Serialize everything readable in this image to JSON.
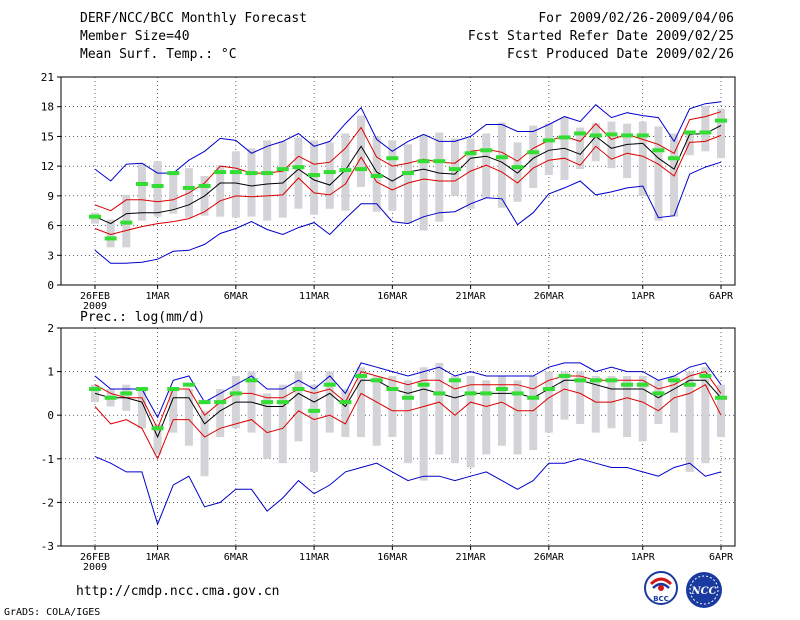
{
  "header": {
    "title": "DERF/NCC/BCC Monthly Forecast",
    "member_size": "Member Size=40",
    "variable": "Mean Surf. Temp.: °C",
    "forecast_period": "For 2009/02/26-2009/04/06",
    "started_refer_date": "Fcst Started Refer Date 2009/02/25",
    "produced_date": "Fcst Produced Date 2009/02/26"
  },
  "footer": {
    "url": "http://cmdp.ncc.cma.gov.cn",
    "credit": "GrADS: COLA/IGES",
    "logo_left_text": "BCC",
    "logo_right_text": "NCC"
  },
  "colors": {
    "envelope": "#0000cc",
    "spread": "#dd0000",
    "mean": "#000000",
    "box": "#d4d4d8",
    "marker": "#33dd33"
  },
  "chart_data": [
    {
      "type": "line",
      "title": "Mean Surf. Temp.: °C",
      "ylim": [
        0,
        21
      ],
      "yticks": [
        0,
        3,
        6,
        9,
        12,
        15,
        18,
        21
      ],
      "xlim": [
        0,
        40
      ],
      "xtick_positions": [
        0,
        4,
        9,
        14,
        19,
        24,
        29,
        35,
        40
      ],
      "xtick_labels": [
        "26FEB",
        "1MAR",
        "6MAR",
        "11MAR",
        "16MAR",
        "21MAR",
        "26MAR",
        "1APR",
        "6APR"
      ],
      "xtick_sublabel": "2009",
      "series": [
        {
          "name": "max",
          "color": "#0000cc",
          "values": [
            11.7,
            10.5,
            12.2,
            12.3,
            11.3,
            11.3,
            12.6,
            13.5,
            14.8,
            14.6,
            13.3,
            14.0,
            14.5,
            15.3,
            14.0,
            14.5,
            16.3,
            17.9,
            14.7,
            13.5,
            14.5,
            15.2,
            14.5,
            14.5,
            15.0,
            16.2,
            16.2,
            15.5,
            15.5,
            16.2,
            17.0,
            16.5,
            18.2,
            16.9,
            17.4,
            17.1,
            16.9,
            14.5,
            17.8,
            18.3,
            18.5
          ]
        },
        {
          "name": "upper",
          "color": "#dd0000",
          "values": [
            8.1,
            7.5,
            8.6,
            8.6,
            8.4,
            8.6,
            9.3,
            10.3,
            12.0,
            11.8,
            11.3,
            11.3,
            11.5,
            13.0,
            12.2,
            12.4,
            13.8,
            15.9,
            12.9,
            12.0,
            12.3,
            12.7,
            12.4,
            12.3,
            13.5,
            13.7,
            13.4,
            12.5,
            13.8,
            14.6,
            15.0,
            14.5,
            16.3,
            14.7,
            15.2,
            14.7,
            14.2,
            13.3,
            16.7,
            17.0,
            17.5
          ]
        },
        {
          "name": "mean",
          "color": "#000000",
          "values": [
            6.9,
            6.2,
            7.2,
            7.3,
            7.3,
            7.6,
            8.1,
            9.0,
            10.3,
            10.3,
            10.0,
            10.2,
            10.3,
            11.7,
            10.6,
            10.1,
            11.6,
            14.0,
            11.4,
            10.5,
            11.4,
            11.7,
            11.3,
            11.2,
            12.8,
            13.0,
            12.4,
            11.3,
            12.8,
            13.6,
            13.8,
            13.2,
            15.0,
            13.8,
            14.2,
            14.3,
            12.8,
            11.7,
            15.2,
            15.3,
            16.1
          ]
        },
        {
          "name": "lower",
          "color": "#dd0000",
          "values": [
            5.7,
            5.1,
            5.5,
            5.9,
            6.2,
            6.4,
            6.7,
            7.4,
            8.5,
            9.0,
            8.9,
            9.0,
            9.1,
            10.8,
            9.3,
            9.1,
            10.2,
            12.9,
            10.4,
            9.6,
            10.3,
            10.7,
            10.5,
            10.5,
            11.5,
            12.1,
            11.4,
            10.3,
            11.8,
            12.6,
            12.8,
            12.1,
            14.0,
            12.7,
            13.3,
            13.0,
            12.2,
            11.0,
            14.4,
            14.5,
            15.1
          ]
        },
        {
          "name": "min",
          "color": "#0000cc",
          "values": [
            3.5,
            2.2,
            2.2,
            2.3,
            2.6,
            3.4,
            3.5,
            4.1,
            5.2,
            5.7,
            6.4,
            5.6,
            5.1,
            5.8,
            6.3,
            5.1,
            6.7,
            8.2,
            8.2,
            6.4,
            6.2,
            6.9,
            7.3,
            7.4,
            8.2,
            8.8,
            8.7,
            6.1,
            7.3,
            9.2,
            9.8,
            10.5,
            9.1,
            9.4,
            9.8,
            10.0,
            6.8,
            7.0,
            11.2,
            11.9,
            12.4
          ]
        }
      ],
      "boxes": {
        "low": [
          6.2,
          3.8,
          3.8,
          6.5,
          6.9,
          7.2,
          6.8,
          7.0,
          6.9,
          6.8,
          6.9,
          6.5,
          6.8,
          7.7,
          7.1,
          7.7,
          7.5,
          9.9,
          7.4,
          7.5,
          6.2,
          5.5,
          6.4,
          9.0,
          7.7,
          8.8,
          7.8,
          8.4,
          9.8,
          11.1,
          10.6,
          11.7,
          12.5,
          11.8,
          10.8,
          9.0,
          6.5,
          6.9,
          13.1,
          13.5,
          12.8
        ],
        "high": [
          7.3,
          6.6,
          9.1,
          12.3,
          12.5,
          11.5,
          11.8,
          11.0,
          12.1,
          13.5,
          13.8,
          14.6,
          14.5,
          14.9,
          14.6,
          14.4,
          15.3,
          17.1,
          15.0,
          14.6,
          14.2,
          15.2,
          15.4,
          14.8,
          14.8,
          15.3,
          16.4,
          14.4,
          16.1,
          16.3,
          16.9,
          15.9,
          16.3,
          16.5,
          16.3,
          16.5,
          16.0,
          15.3,
          15.4,
          18.1,
          17.8
        ]
      },
      "markers": [
        6.9,
        4.7,
        6.3,
        10.2,
        10.0,
        11.3,
        9.8,
        10.0,
        11.4,
        11.4,
        11.3,
        11.3,
        11.7,
        11.9,
        11.1,
        11.4,
        11.6,
        11.7,
        11.0,
        12.8,
        11.3,
        12.5,
        12.5,
        11.7,
        13.3,
        13.6,
        12.9,
        11.9,
        13.4,
        14.6,
        14.9,
        15.3,
        15.1,
        15.2,
        15.1,
        15.1,
        13.6,
        12.8,
        15.4,
        15.4,
        16.6
      ]
    },
    {
      "type": "line",
      "title": "Prec.: log(mm/d)",
      "ylim": [
        -3,
        2
      ],
      "yticks": [
        -3,
        -2,
        -1,
        0,
        1,
        2
      ],
      "xlim": [
        0,
        40
      ],
      "xtick_positions": [
        0,
        4,
        9,
        14,
        19,
        24,
        29,
        35,
        40
      ],
      "xtick_labels": [
        "26FEB",
        "1MAR",
        "6MAR",
        "11MAR",
        "16MAR",
        "21MAR",
        "26MAR",
        "1APR",
        "6APR"
      ],
      "xtick_sublabel": "2009",
      "series": [
        {
          "name": "max",
          "color": "#0000cc",
          "values": [
            0.9,
            0.6,
            0.6,
            0.6,
            -0.05,
            0.8,
            0.9,
            0.3,
            0.5,
            0.7,
            0.9,
            0.6,
            0.6,
            0.8,
            0.6,
            0.9,
            0.5,
            1.2,
            1.1,
            1.0,
            0.9,
            1.0,
            1.1,
            0.9,
            1.0,
            0.9,
            0.9,
            0.9,
            0.9,
            1.1,
            1.2,
            1.2,
            1.0,
            1.1,
            1.0,
            1.0,
            0.8,
            0.9,
            1.1,
            1.2,
            0.7
          ]
        },
        {
          "name": "upper",
          "color": "#dd0000",
          "values": [
            0.7,
            0.5,
            0.4,
            0.4,
            -0.3,
            0.6,
            0.6,
            0.0,
            0.3,
            0.5,
            0.5,
            0.4,
            0.4,
            0.6,
            0.5,
            0.6,
            0.3,
            1.0,
            0.9,
            0.8,
            0.7,
            0.8,
            0.8,
            0.6,
            0.7,
            0.7,
            0.7,
            0.7,
            0.6,
            0.8,
            0.9,
            0.9,
            0.8,
            0.8,
            0.8,
            0.8,
            0.6,
            0.7,
            0.9,
            1.0,
            0.5
          ]
        },
        {
          "name": "mean",
          "color": "#000000",
          "values": [
            0.5,
            0.4,
            0.4,
            0.3,
            -0.5,
            0.4,
            0.4,
            -0.2,
            0.1,
            0.3,
            0.3,
            0.2,
            0.2,
            0.5,
            0.3,
            0.5,
            0.2,
            0.8,
            0.8,
            0.6,
            0.5,
            0.6,
            0.5,
            0.4,
            0.5,
            0.5,
            0.5,
            0.5,
            0.4,
            0.6,
            0.8,
            0.8,
            0.7,
            0.6,
            0.6,
            0.6,
            0.4,
            0.6,
            0.8,
            0.8,
            0.4
          ]
        },
        {
          "name": "lower",
          "color": "#dd0000",
          "values": [
            0.2,
            -0.2,
            -0.1,
            -0.3,
            -1.0,
            -0.1,
            -0.1,
            -0.5,
            -0.3,
            -0.2,
            -0.1,
            -0.4,
            -0.3,
            0.1,
            -0.1,
            0.0,
            -0.2,
            0.5,
            0.3,
            0.1,
            0.1,
            0.2,
            0.3,
            0.0,
            0.3,
            0.2,
            0.3,
            0.1,
            0.1,
            0.4,
            0.6,
            0.5,
            0.3,
            0.3,
            0.4,
            0.3,
            0.1,
            0.4,
            0.5,
            0.7,
            0.0
          ]
        },
        {
          "name": "min",
          "color": "#0000cc",
          "values": [
            -0.95,
            -1.1,
            -1.3,
            -1.3,
            -2.5,
            -1.6,
            -1.4,
            -2.1,
            -2.0,
            -1.7,
            -1.7,
            -2.2,
            -1.9,
            -1.5,
            -1.8,
            -1.6,
            -1.3,
            -1.2,
            -1.1,
            -1.3,
            -1.5,
            -1.4,
            -1.4,
            -1.5,
            -1.4,
            -1.3,
            -1.5,
            -1.7,
            -1.5,
            -1.1,
            -1.1,
            -1.0,
            -1.1,
            -1.2,
            -1.2,
            -1.3,
            -1.4,
            -1.2,
            -1.1,
            -1.4,
            -1.3
          ]
        },
        {
          "name": "gap",
          "color": "#0000cc",
          "values": []
        }
      ],
      "boxes": {
        "low": [
          0.3,
          0.2,
          0.1,
          -0.3,
          -0.9,
          -0.4,
          -0.7,
          -1.4,
          -0.5,
          -0.3,
          -0.4,
          -1.0,
          -1.1,
          -0.6,
          -1.3,
          -0.4,
          -0.5,
          -0.5,
          -0.7,
          -0.5,
          -1.1,
          -1.5,
          -0.9,
          -1.1,
          -1.2,
          -0.9,
          -0.7,
          -0.9,
          -0.8,
          -0.4,
          -0.1,
          -0.2,
          -0.4,
          -0.3,
          -0.5,
          -0.6,
          -0.2,
          -0.4,
          -1.3,
          -1.1,
          -0.5
        ],
        "high": [
          0.7,
          0.6,
          0.7,
          0.6,
          -0.2,
          0.6,
          0.6,
          0.1,
          0.6,
          0.9,
          1.0,
          0.5,
          0.7,
          1.0,
          0.7,
          1.0,
          0.6,
          1.1,
          0.9,
          0.9,
          0.8,
          1.1,
          1.2,
          0.9,
          0.9,
          0.8,
          0.9,
          0.8,
          0.9,
          1.0,
          1.0,
          1.0,
          0.9,
          0.9,
          0.9,
          0.9,
          0.8,
          0.9,
          1.0,
          1.1,
          0.7
        ]
      },
      "markers": [
        0.6,
        0.4,
        0.5,
        0.6,
        -0.3,
        0.6,
        0.7,
        0.3,
        0.3,
        0.5,
        0.8,
        0.3,
        0.3,
        0.6,
        0.1,
        0.7,
        0.3,
        0.9,
        0.8,
        0.6,
        0.4,
        0.7,
        0.5,
        0.8,
        0.5,
        0.5,
        0.6,
        0.5,
        0.4,
        0.6,
        0.9,
        0.8,
        0.8,
        0.8,
        0.7,
        0.7,
        0.5,
        0.8,
        0.7,
        0.9,
        0.4
      ]
    }
  ]
}
